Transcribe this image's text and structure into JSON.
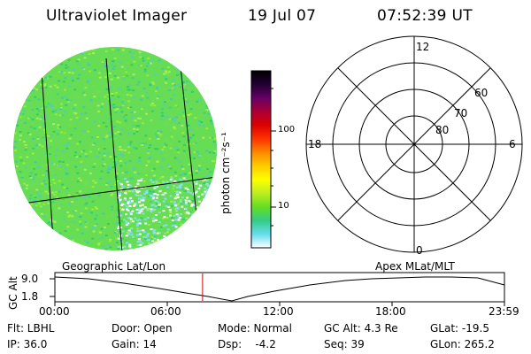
{
  "header": {
    "instrument": "Ultraviolet Imager",
    "date": "19 Jul 07",
    "time": "07:52:39 UT"
  },
  "colorbar": {
    "unit_label": "photon cm⁻²s⁻¹",
    "ticks": [
      "100",
      "10"
    ],
    "colors": [
      "#ffffff",
      "#66ddee",
      "#33cc88",
      "#66dd22",
      "#bbee22",
      "#ffff00",
      "#ffcc00",
      "#ff8800",
      "#ff3300",
      "#dd0000",
      "#aa0033",
      "#660066",
      "#220033",
      "#000000"
    ]
  },
  "polar_plot": {
    "mlt_labels": {
      "top": "12",
      "left": "18",
      "right": "6",
      "bottom": "0"
    },
    "lat_labels": [
      "60",
      "70",
      "80"
    ]
  },
  "timeline": {
    "ylabel": "GC Alt",
    "yticks": [
      "9.0",
      "1.8"
    ],
    "left_label": "Geographic Lat/Lon",
    "right_label": "Apex MLat/MLT",
    "xticks": [
      "00:00",
      "06:00",
      "12:00",
      "18:00",
      "23:59"
    ],
    "current_time_hours": 7.88,
    "marker_color": "#cc0000"
  },
  "footer": {
    "filter": "Flt: LBHL",
    "door": "Door: Open",
    "mode": "Mode: Normal",
    "gc_alt": "GC Alt: 4.3 Re",
    "glat": "GLat: -19.5",
    "ip": "IP: 36.0",
    "gain": "Gain: 14",
    "dsp": "Dsp:    -4.2",
    "seq": "Seq: 39",
    "glon": "GLon: 265.2"
  }
}
